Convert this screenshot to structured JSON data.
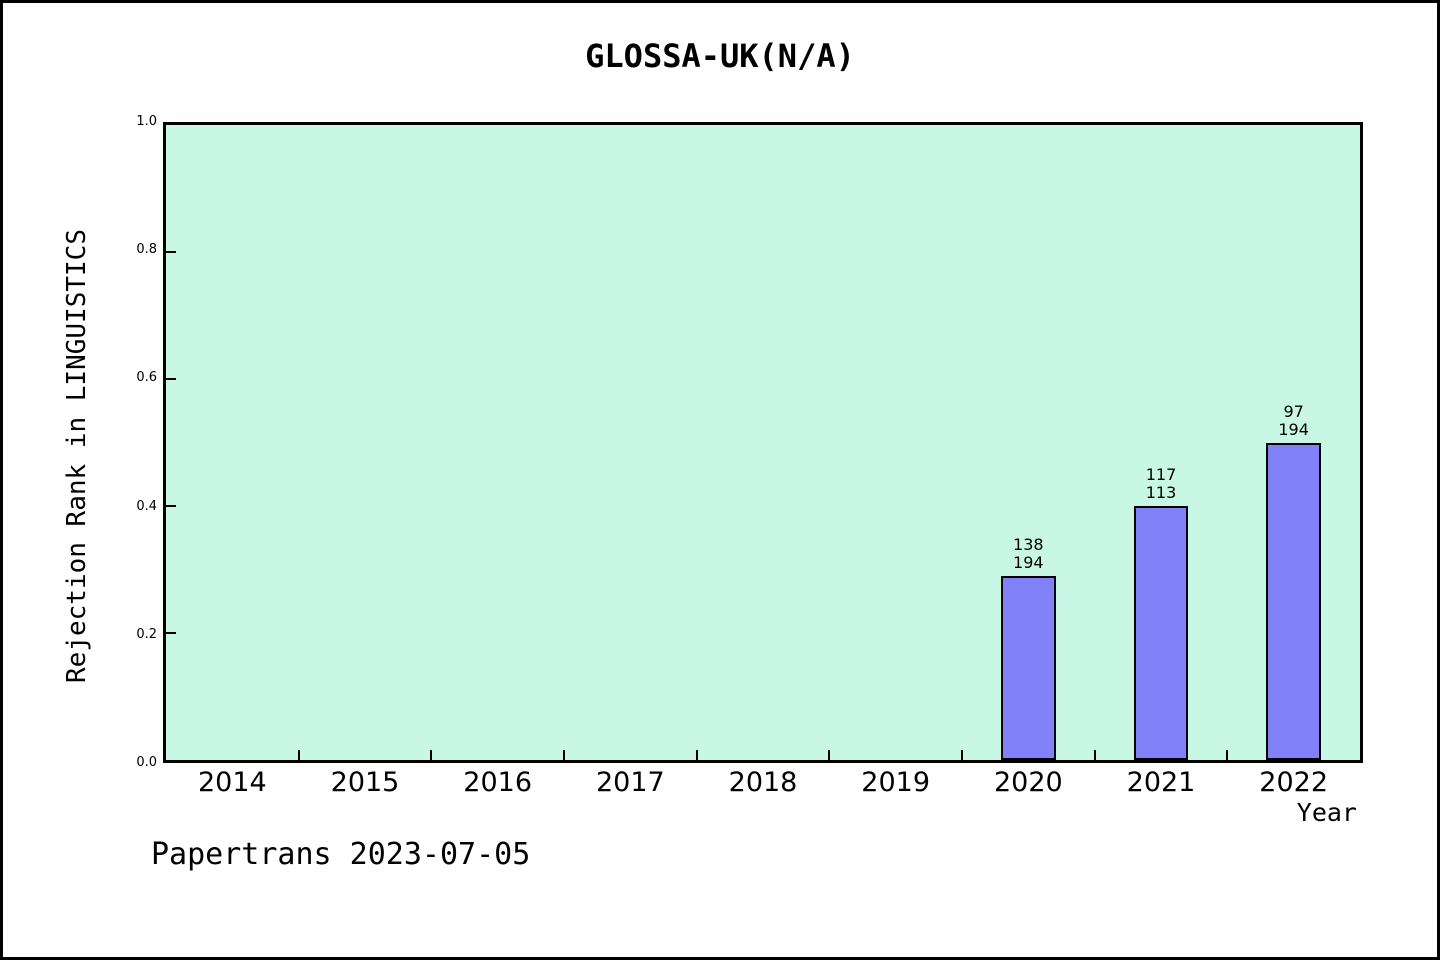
{
  "page": {
    "title": "GLOSSA-UK(N/A)",
    "footer": "Papertrans 2023-07-05"
  },
  "colors": {
    "page_background": "#ffffff",
    "page_border": "#000000",
    "plot_background": "#c9f7e5",
    "bar_fill": "#8181fa",
    "bar_edge": "#000000",
    "text": "#000000"
  },
  "chart_data": {
    "type": "bar",
    "title": "GLOSSA-UK(N/A)",
    "xlabel": "Year",
    "ylabel": "Rejection Rank in LINGUISTICS",
    "categories": [
      "2014",
      "2015",
      "2016",
      "2017",
      "2018",
      "2019",
      "2020",
      "2021",
      "2022"
    ],
    "ylim": [
      0.0,
      1.0
    ],
    "ytick_labels": [
      "0.0",
      "0.2",
      "0.4",
      "0.6",
      "0.8",
      "1.0"
    ],
    "grid": false,
    "legend": "none",
    "bar_width_fraction": 0.41,
    "bars": [
      {
        "category": "2020",
        "value": 0.29,
        "annotation_lines": [
          "138",
          "194"
        ]
      },
      {
        "category": "2021",
        "value": 0.4,
        "annotation_lines": [
          "117",
          "113"
        ]
      },
      {
        "category": "2022",
        "value": 0.5,
        "annotation_lines": [
          "97",
          "194"
        ]
      }
    ]
  }
}
